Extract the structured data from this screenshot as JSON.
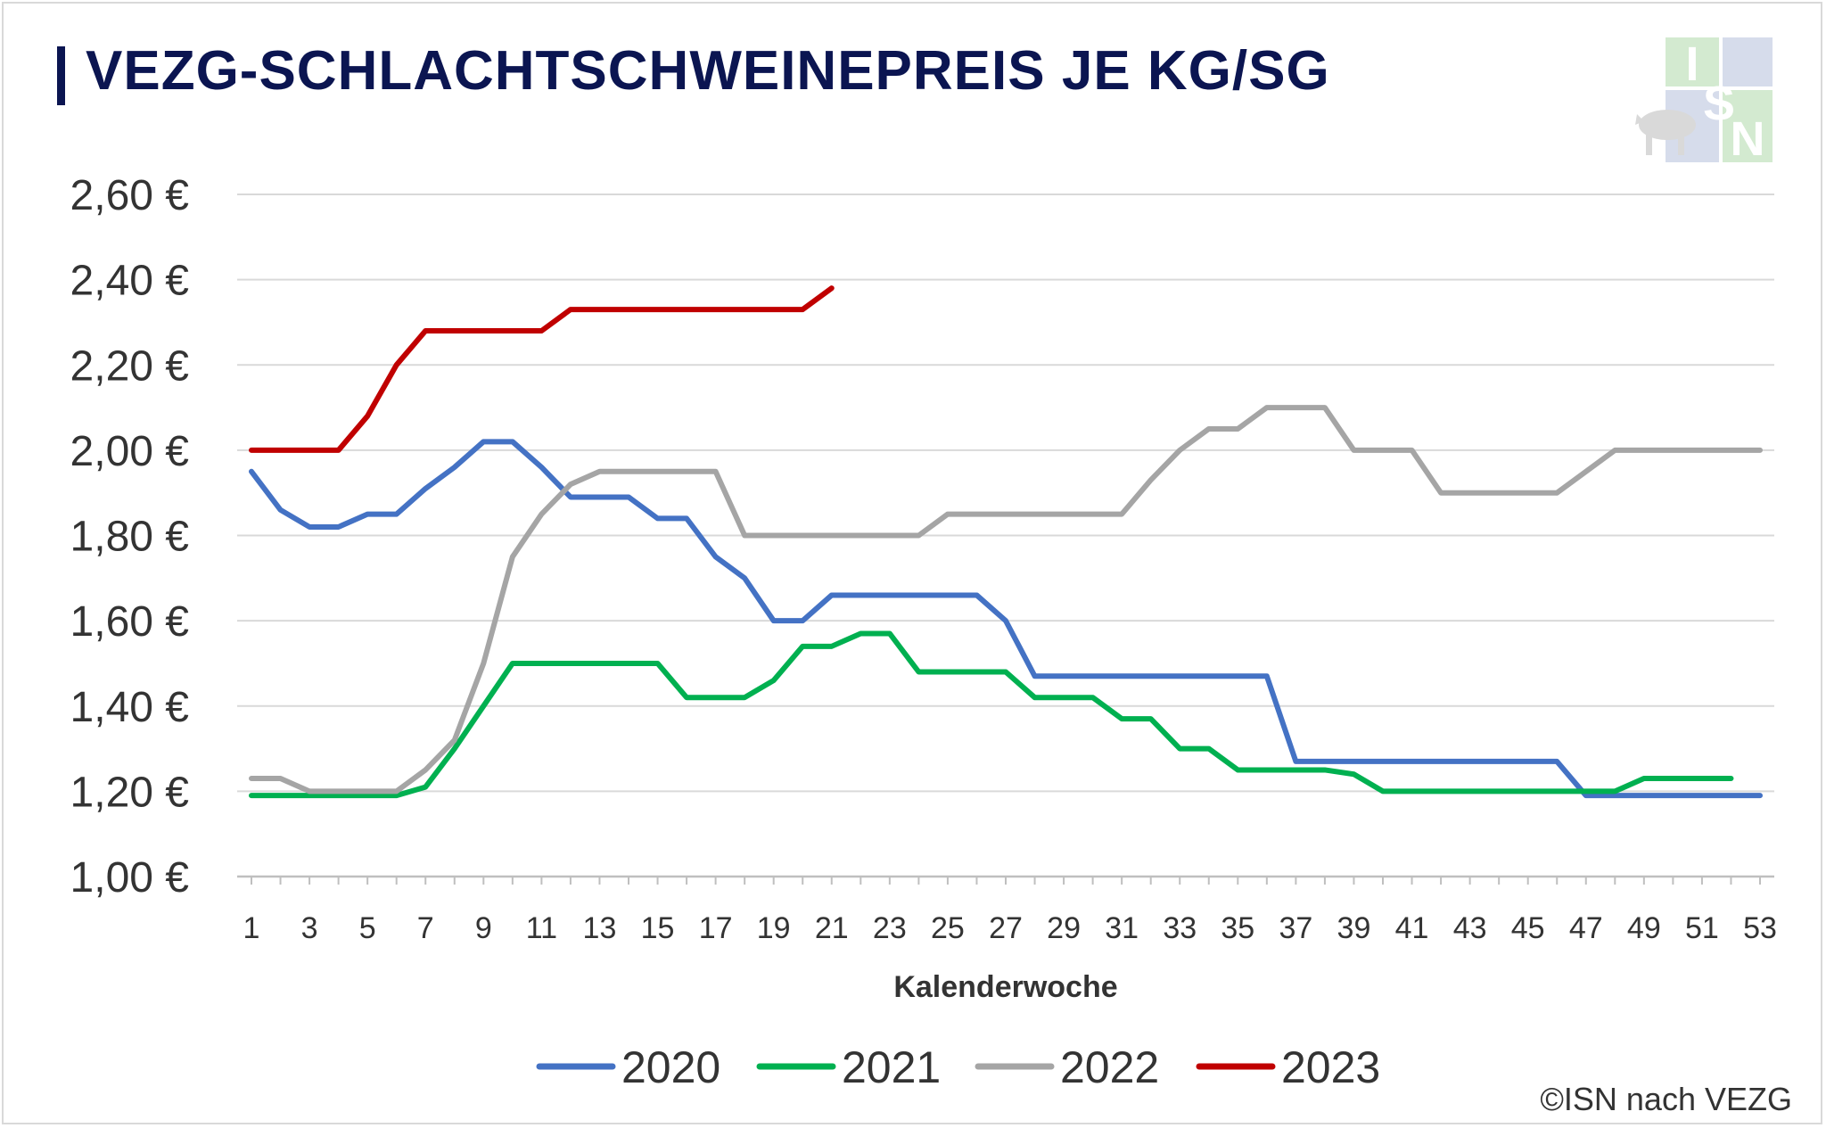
{
  "chart_data": {
    "type": "line",
    "title": "VEZG-SCHLACHTSCHWEINEPREIS JE KG/SG",
    "xlabel": "Kalenderwoche",
    "ylabel": "",
    "ylim": [
      1.0,
      2.6
    ],
    "xlim": [
      1,
      53
    ],
    "y_ticks": [
      1.0,
      1.2,
      1.4,
      1.6,
      1.8,
      2.0,
      2.2,
      2.4,
      2.6
    ],
    "y_tick_labels": [
      "1,00 €",
      "1,20 €",
      "1,40 €",
      "1,60 €",
      "1,80 €",
      "2,00 €",
      "2,20 €",
      "2,40 €",
      "2,60 €"
    ],
    "x_tick_labels": [
      "1",
      "3",
      "5",
      "7",
      "9",
      "11",
      "13",
      "15",
      "17",
      "19",
      "21",
      "23",
      "25",
      "27",
      "29",
      "31",
      "33",
      "35",
      "37",
      "39",
      "41",
      "43",
      "45",
      "47",
      "49",
      "51",
      "53"
    ],
    "grid": "horizontal",
    "legend_position": "bottom",
    "series": [
      {
        "name": "2020",
        "color": "#4472c4",
        "x": [
          1,
          2,
          3,
          4,
          5,
          6,
          7,
          8,
          9,
          10,
          11,
          12,
          13,
          14,
          15,
          16,
          17,
          18,
          19,
          20,
          21,
          22,
          23,
          24,
          25,
          26,
          27,
          28,
          29,
          30,
          31,
          32,
          33,
          34,
          35,
          36,
          37,
          38,
          39,
          40,
          41,
          42,
          43,
          44,
          45,
          46,
          47,
          48,
          49,
          50,
          51,
          52,
          53
        ],
        "values": [
          1.95,
          1.86,
          1.82,
          1.82,
          1.85,
          1.85,
          1.91,
          1.96,
          2.02,
          2.02,
          1.96,
          1.89,
          1.89,
          1.89,
          1.84,
          1.84,
          1.75,
          1.7,
          1.6,
          1.6,
          1.66,
          1.66,
          1.66,
          1.66,
          1.66,
          1.66,
          1.6,
          1.47,
          1.47,
          1.47,
          1.47,
          1.47,
          1.47,
          1.47,
          1.47,
          1.47,
          1.27,
          1.27,
          1.27,
          1.27,
          1.27,
          1.27,
          1.27,
          1.27,
          1.27,
          1.27,
          1.19,
          1.19,
          1.19,
          1.19,
          1.19,
          1.19,
          1.19
        ]
      },
      {
        "name": "2021",
        "color": "#00b050",
        "x": [
          1,
          2,
          3,
          4,
          5,
          6,
          7,
          8,
          9,
          10,
          11,
          12,
          13,
          14,
          15,
          16,
          17,
          18,
          19,
          20,
          21,
          22,
          23,
          24,
          25,
          26,
          27,
          28,
          29,
          30,
          31,
          32,
          33,
          34,
          35,
          36,
          37,
          38,
          39,
          40,
          41,
          42,
          43,
          44,
          45,
          46,
          47,
          48,
          49,
          50,
          51,
          52
        ],
        "values": [
          1.19,
          1.19,
          1.19,
          1.19,
          1.19,
          1.19,
          1.21,
          1.3,
          1.4,
          1.5,
          1.5,
          1.5,
          1.5,
          1.5,
          1.5,
          1.42,
          1.42,
          1.42,
          1.46,
          1.54,
          1.54,
          1.57,
          1.57,
          1.48,
          1.48,
          1.48,
          1.48,
          1.42,
          1.42,
          1.42,
          1.37,
          1.37,
          1.3,
          1.3,
          1.25,
          1.25,
          1.25,
          1.25,
          1.24,
          1.2,
          1.2,
          1.2,
          1.2,
          1.2,
          1.2,
          1.2,
          1.2,
          1.2,
          1.23,
          1.23,
          1.23,
          1.23
        ]
      },
      {
        "name": "2022",
        "color": "#a5a5a5",
        "x": [
          1,
          2,
          3,
          4,
          5,
          6,
          7,
          8,
          9,
          10,
          11,
          12,
          13,
          14,
          15,
          16,
          17,
          18,
          19,
          20,
          21,
          22,
          23,
          24,
          25,
          26,
          27,
          28,
          29,
          30,
          31,
          32,
          33,
          34,
          35,
          36,
          37,
          38,
          39,
          40,
          41,
          42,
          43,
          44,
          45,
          46,
          47,
          48,
          49,
          50,
          51,
          52,
          53
        ],
        "values": [
          1.23,
          1.23,
          1.2,
          1.2,
          1.2,
          1.2,
          1.25,
          1.32,
          1.5,
          1.75,
          1.85,
          1.92,
          1.95,
          1.95,
          1.95,
          1.95,
          1.95,
          1.8,
          1.8,
          1.8,
          1.8,
          1.8,
          1.8,
          1.8,
          1.85,
          1.85,
          1.85,
          1.85,
          1.85,
          1.85,
          1.85,
          1.93,
          2.0,
          2.05,
          2.05,
          2.1,
          2.1,
          2.1,
          2.0,
          2.0,
          2.0,
          1.9,
          1.9,
          1.9,
          1.9,
          1.9,
          1.95,
          2.0,
          2.0,
          2.0,
          2.0,
          2.0,
          2.0
        ]
      },
      {
        "name": "2023",
        "color": "#c00000",
        "x": [
          1,
          2,
          3,
          4,
          5,
          6,
          7,
          8,
          9,
          10,
          11,
          12,
          13,
          14,
          15,
          16,
          17,
          18,
          19,
          20,
          21
        ],
        "values": [
          2.0,
          2.0,
          2.0,
          2.0,
          2.08,
          2.2,
          2.28,
          2.28,
          2.28,
          2.28,
          2.28,
          2.33,
          2.33,
          2.33,
          2.33,
          2.33,
          2.33,
          2.33,
          2.33,
          2.33,
          2.38
        ]
      }
    ]
  },
  "logo": {
    "letters": [
      "I",
      "S",
      "N"
    ],
    "colors": {
      "green": "#d3ead0",
      "blue": "#d6dceb",
      "pig": "#d9d9d9"
    }
  },
  "source": "©ISN nach VEZG"
}
